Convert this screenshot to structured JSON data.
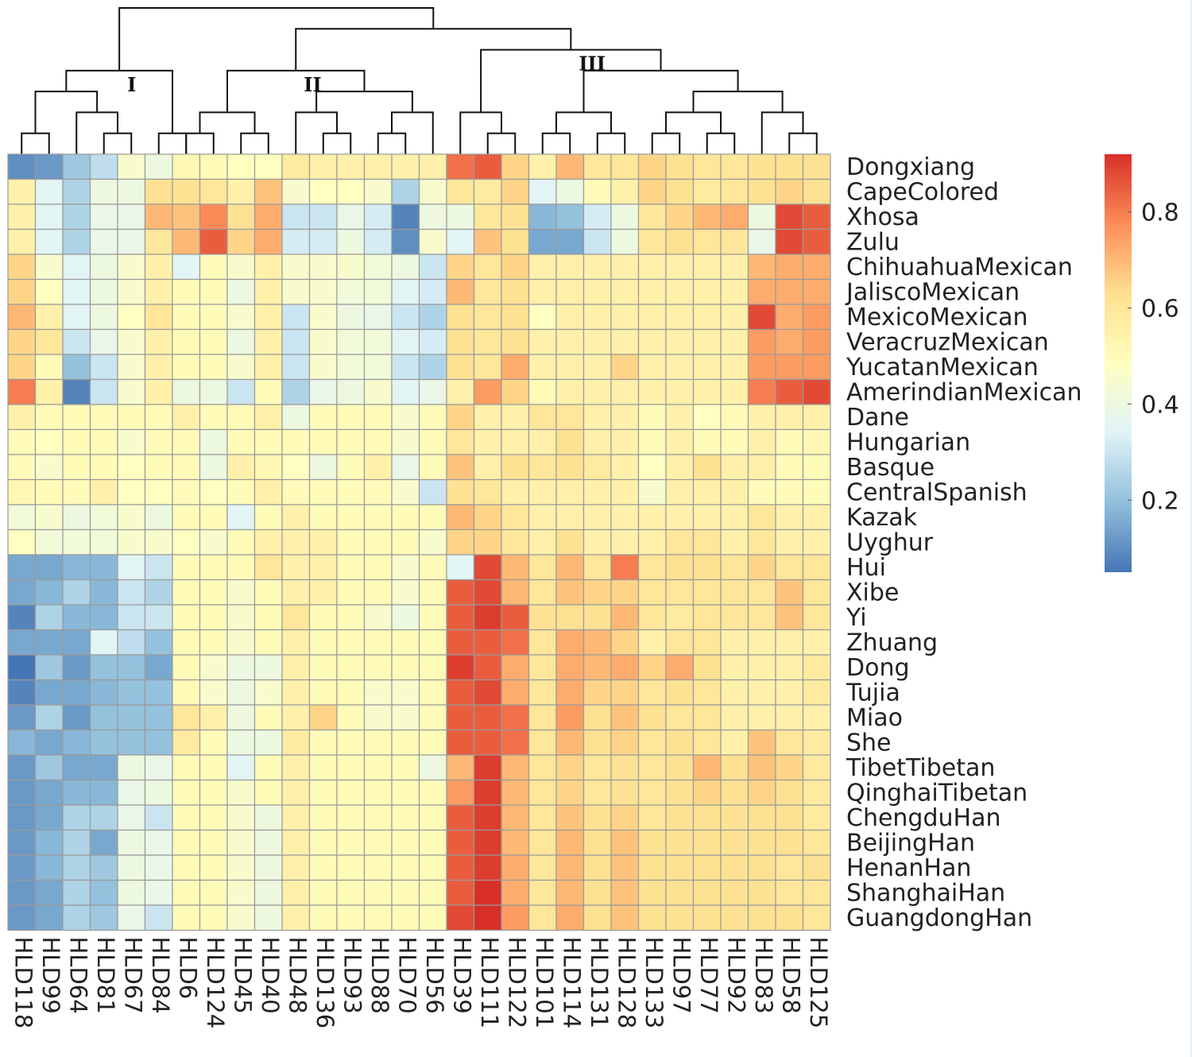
{
  "chart_data": {
    "type": "heatmap",
    "title": "",
    "columns": [
      "HLD118",
      "HLD99",
      "HLD64",
      "HLD81",
      "HLD67",
      "HLD84",
      "HLD6",
      "HLD124",
      "HLD45",
      "HLD40",
      "HLD48",
      "HLD136",
      "HLD93",
      "HLD88",
      "HLD70",
      "HLD56",
      "HLD39",
      "HLD111",
      "HLD122",
      "HLD101",
      "HLD114",
      "HLD131",
      "HLD128",
      "HLD133",
      "HLD97",
      "HLD77",
      "HLD92",
      "HLD83",
      "HLD58",
      "HLD125"
    ],
    "rows": [
      "Dongxiang",
      "CapeColored",
      "Xhosa",
      "Zulu",
      "ChihuahuaMexican",
      "JaliscoMexican",
      "MexicoMexican",
      "VeracruzMexican",
      "YucatanMexican",
      "AmerindianMexican",
      "Dane",
      "Hungarian",
      "Basque",
      "CentralSpanish",
      "Kazak",
      "Uyghur",
      "Hui",
      "Xibe",
      "Yi",
      "Zhuang",
      "Dong",
      "Tujia",
      "Miao",
      "She",
      "TibetTibetan",
      "QinghaiTibetan",
      "ChengduHan",
      "BeijingHan",
      "HenanHan",
      "ShanghaiHan",
      "GuangdongHan"
    ],
    "values": [
      [
        0.1,
        0.12,
        0.22,
        0.28,
        0.45,
        0.4,
        0.52,
        0.5,
        0.48,
        0.48,
        0.58,
        0.55,
        0.55,
        0.55,
        0.55,
        0.55,
        0.82,
        0.85,
        0.65,
        0.55,
        0.7,
        0.6,
        0.6,
        0.65,
        0.62,
        0.6,
        0.6,
        0.62,
        0.62,
        0.62
      ],
      [
        0.55,
        0.35,
        0.25,
        0.4,
        0.4,
        0.62,
        0.62,
        0.6,
        0.55,
        0.68,
        0.45,
        0.48,
        0.48,
        0.45,
        0.25,
        0.45,
        0.6,
        0.58,
        0.65,
        0.35,
        0.4,
        0.5,
        0.55,
        0.65,
        0.62,
        0.58,
        0.6,
        0.62,
        0.65,
        0.62
      ],
      [
        0.55,
        0.35,
        0.25,
        0.38,
        0.38,
        0.7,
        0.68,
        0.78,
        0.62,
        0.72,
        0.3,
        0.3,
        0.38,
        0.32,
        0.08,
        0.4,
        0.4,
        0.6,
        0.62,
        0.18,
        0.2,
        0.32,
        0.4,
        0.6,
        0.65,
        0.7,
        0.72,
        0.4,
        0.88,
        0.85
      ],
      [
        0.55,
        0.35,
        0.25,
        0.38,
        0.38,
        0.6,
        0.7,
        0.85,
        0.65,
        0.72,
        0.32,
        0.32,
        0.4,
        0.32,
        0.1,
        0.45,
        0.35,
        0.68,
        0.62,
        0.15,
        0.15,
        0.3,
        0.4,
        0.6,
        0.62,
        0.6,
        0.6,
        0.38,
        0.88,
        0.85
      ],
      [
        0.65,
        0.45,
        0.35,
        0.4,
        0.45,
        0.55,
        0.35,
        0.5,
        0.45,
        0.55,
        0.45,
        0.45,
        0.45,
        0.42,
        0.4,
        0.3,
        0.65,
        0.6,
        0.65,
        0.55,
        0.55,
        0.55,
        0.55,
        0.55,
        0.55,
        0.55,
        0.55,
        0.7,
        0.72,
        0.72
      ],
      [
        0.65,
        0.48,
        0.35,
        0.4,
        0.45,
        0.55,
        0.5,
        0.5,
        0.4,
        0.55,
        0.45,
        0.45,
        0.42,
        0.42,
        0.35,
        0.32,
        0.7,
        0.6,
        0.62,
        0.55,
        0.55,
        0.55,
        0.55,
        0.55,
        0.55,
        0.55,
        0.55,
        0.72,
        0.72,
        0.72
      ],
      [
        0.7,
        0.55,
        0.35,
        0.4,
        0.48,
        0.6,
        0.5,
        0.5,
        0.45,
        0.55,
        0.3,
        0.45,
        0.4,
        0.38,
        0.3,
        0.25,
        0.62,
        0.6,
        0.62,
        0.48,
        0.55,
        0.55,
        0.55,
        0.55,
        0.55,
        0.55,
        0.55,
        0.88,
        0.72,
        0.75
      ],
      [
        0.65,
        0.6,
        0.3,
        0.38,
        0.45,
        0.55,
        0.5,
        0.5,
        0.4,
        0.55,
        0.3,
        0.45,
        0.42,
        0.42,
        0.35,
        0.32,
        0.62,
        0.6,
        0.62,
        0.55,
        0.55,
        0.55,
        0.55,
        0.55,
        0.55,
        0.55,
        0.55,
        0.75,
        0.72,
        0.75
      ],
      [
        0.65,
        0.5,
        0.2,
        0.3,
        0.45,
        0.55,
        0.5,
        0.5,
        0.45,
        0.55,
        0.3,
        0.45,
        0.42,
        0.42,
        0.3,
        0.25,
        0.62,
        0.6,
        0.72,
        0.55,
        0.55,
        0.55,
        0.65,
        0.55,
        0.55,
        0.55,
        0.55,
        0.75,
        0.75,
        0.75
      ],
      [
        0.8,
        0.55,
        0.08,
        0.3,
        0.45,
        0.55,
        0.4,
        0.4,
        0.3,
        0.5,
        0.25,
        0.38,
        0.4,
        0.45,
        0.35,
        0.38,
        0.55,
        0.75,
        0.65,
        0.5,
        0.55,
        0.55,
        0.55,
        0.55,
        0.55,
        0.55,
        0.55,
        0.8,
        0.85,
        0.88
      ],
      [
        0.55,
        0.5,
        0.5,
        0.5,
        0.5,
        0.5,
        0.55,
        0.5,
        0.5,
        0.55,
        0.4,
        0.5,
        0.5,
        0.5,
        0.45,
        0.5,
        0.65,
        0.55,
        0.55,
        0.6,
        0.6,
        0.55,
        0.55,
        0.5,
        0.55,
        0.48,
        0.5,
        0.55,
        0.55,
        0.55
      ],
      [
        0.5,
        0.48,
        0.5,
        0.5,
        0.45,
        0.5,
        0.5,
        0.4,
        0.5,
        0.5,
        0.5,
        0.5,
        0.5,
        0.5,
        0.45,
        0.5,
        0.6,
        0.55,
        0.55,
        0.55,
        0.62,
        0.55,
        0.55,
        0.5,
        0.55,
        0.5,
        0.5,
        0.55,
        0.5,
        0.52
      ],
      [
        0.5,
        0.45,
        0.5,
        0.5,
        0.48,
        0.5,
        0.5,
        0.4,
        0.55,
        0.52,
        0.48,
        0.4,
        0.5,
        0.55,
        0.38,
        0.5,
        0.68,
        0.55,
        0.62,
        0.6,
        0.62,
        0.58,
        0.55,
        0.48,
        0.55,
        0.62,
        0.55,
        0.55,
        0.5,
        0.5
      ],
      [
        0.52,
        0.5,
        0.5,
        0.55,
        0.48,
        0.48,
        0.5,
        0.48,
        0.5,
        0.55,
        0.5,
        0.5,
        0.5,
        0.5,
        0.45,
        0.3,
        0.62,
        0.6,
        0.55,
        0.55,
        0.55,
        0.55,
        0.55,
        0.45,
        0.55,
        0.55,
        0.55,
        0.5,
        0.5,
        0.5
      ],
      [
        0.42,
        0.45,
        0.4,
        0.42,
        0.45,
        0.4,
        0.5,
        0.5,
        0.35,
        0.5,
        0.55,
        0.5,
        0.5,
        0.5,
        0.5,
        0.5,
        0.7,
        0.65,
        0.6,
        0.55,
        0.55,
        0.55,
        0.55,
        0.55,
        0.55,
        0.55,
        0.55,
        0.6,
        0.55,
        0.55
      ],
      [
        0.48,
        0.42,
        0.42,
        0.42,
        0.45,
        0.45,
        0.48,
        0.45,
        0.5,
        0.55,
        0.55,
        0.55,
        0.5,
        0.5,
        0.5,
        0.45,
        0.65,
        0.65,
        0.6,
        0.55,
        0.62,
        0.55,
        0.55,
        0.55,
        0.6,
        0.6,
        0.55,
        0.6,
        0.55,
        0.55
      ],
      [
        0.15,
        0.15,
        0.18,
        0.18,
        0.35,
        0.3,
        0.5,
        0.5,
        0.5,
        0.6,
        0.55,
        0.55,
        0.5,
        0.5,
        0.45,
        0.5,
        0.35,
        0.88,
        0.7,
        0.6,
        0.7,
        0.6,
        0.8,
        0.6,
        0.62,
        0.62,
        0.6,
        0.65,
        0.6,
        0.6
      ],
      [
        0.15,
        0.18,
        0.25,
        0.18,
        0.3,
        0.25,
        0.5,
        0.5,
        0.45,
        0.5,
        0.55,
        0.55,
        0.5,
        0.5,
        0.45,
        0.5,
        0.85,
        0.88,
        0.7,
        0.6,
        0.68,
        0.65,
        0.65,
        0.6,
        0.6,
        0.6,
        0.6,
        0.6,
        0.68,
        0.6
      ],
      [
        0.08,
        0.25,
        0.18,
        0.18,
        0.3,
        0.3,
        0.5,
        0.5,
        0.45,
        0.5,
        0.6,
        0.5,
        0.5,
        0.45,
        0.4,
        0.5,
        0.85,
        0.9,
        0.85,
        0.62,
        0.62,
        0.62,
        0.7,
        0.6,
        0.58,
        0.6,
        0.6,
        0.6,
        0.68,
        0.6
      ],
      [
        0.15,
        0.15,
        0.15,
        0.35,
        0.28,
        0.2,
        0.5,
        0.5,
        0.45,
        0.5,
        0.55,
        0.5,
        0.5,
        0.5,
        0.5,
        0.5,
        0.85,
        0.85,
        0.82,
        0.6,
        0.72,
        0.7,
        0.65,
        0.55,
        0.6,
        0.6,
        0.55,
        0.55,
        0.55,
        0.55
      ],
      [
        0.05,
        0.22,
        0.12,
        0.2,
        0.2,
        0.15,
        0.5,
        0.45,
        0.4,
        0.4,
        0.55,
        0.5,
        0.5,
        0.5,
        0.5,
        0.5,
        0.9,
        0.85,
        0.72,
        0.6,
        0.72,
        0.7,
        0.72,
        0.65,
        0.72,
        0.62,
        0.55,
        0.55,
        0.55,
        0.58
      ],
      [
        0.08,
        0.15,
        0.15,
        0.18,
        0.2,
        0.2,
        0.5,
        0.45,
        0.4,
        0.45,
        0.55,
        0.5,
        0.5,
        0.45,
        0.45,
        0.5,
        0.85,
        0.88,
        0.72,
        0.6,
        0.72,
        0.65,
        0.65,
        0.6,
        0.62,
        0.6,
        0.55,
        0.55,
        0.55,
        0.58
      ],
      [
        0.12,
        0.25,
        0.12,
        0.2,
        0.2,
        0.2,
        0.6,
        0.55,
        0.4,
        0.5,
        0.55,
        0.65,
        0.5,
        0.45,
        0.45,
        0.5,
        0.85,
        0.85,
        0.82,
        0.6,
        0.75,
        0.62,
        0.68,
        0.62,
        0.6,
        0.6,
        0.55,
        0.55,
        0.55,
        0.55
      ],
      [
        0.18,
        0.15,
        0.18,
        0.2,
        0.2,
        0.2,
        0.58,
        0.5,
        0.4,
        0.4,
        0.58,
        0.5,
        0.5,
        0.5,
        0.5,
        0.5,
        0.85,
        0.85,
        0.82,
        0.6,
        0.7,
        0.62,
        0.65,
        0.6,
        0.62,
        0.6,
        0.55,
        0.68,
        0.6,
        0.58
      ],
      [
        0.12,
        0.22,
        0.15,
        0.15,
        0.4,
        0.38,
        0.5,
        0.5,
        0.35,
        0.5,
        0.55,
        0.5,
        0.5,
        0.5,
        0.5,
        0.4,
        0.7,
        0.9,
        0.7,
        0.6,
        0.65,
        0.6,
        0.62,
        0.6,
        0.62,
        0.7,
        0.62,
        0.68,
        0.65,
        0.58
      ],
      [
        0.12,
        0.15,
        0.18,
        0.18,
        0.38,
        0.4,
        0.5,
        0.5,
        0.45,
        0.5,
        0.55,
        0.5,
        0.5,
        0.5,
        0.5,
        0.5,
        0.75,
        0.9,
        0.7,
        0.6,
        0.65,
        0.6,
        0.62,
        0.6,
        0.62,
        0.65,
        0.62,
        0.65,
        0.62,
        0.58
      ],
      [
        0.12,
        0.15,
        0.25,
        0.25,
        0.38,
        0.3,
        0.5,
        0.5,
        0.45,
        0.4,
        0.55,
        0.5,
        0.5,
        0.5,
        0.5,
        0.5,
        0.85,
        0.9,
        0.7,
        0.6,
        0.68,
        0.62,
        0.65,
        0.6,
        0.62,
        0.62,
        0.62,
        0.62,
        0.62,
        0.58
      ],
      [
        0.12,
        0.18,
        0.25,
        0.15,
        0.4,
        0.38,
        0.5,
        0.5,
        0.45,
        0.4,
        0.55,
        0.5,
        0.5,
        0.5,
        0.5,
        0.5,
        0.85,
        0.9,
        0.7,
        0.6,
        0.7,
        0.62,
        0.68,
        0.62,
        0.62,
        0.62,
        0.62,
        0.62,
        0.62,
        0.6
      ],
      [
        0.12,
        0.18,
        0.25,
        0.22,
        0.4,
        0.38,
        0.5,
        0.5,
        0.45,
        0.4,
        0.55,
        0.5,
        0.5,
        0.5,
        0.5,
        0.5,
        0.85,
        0.9,
        0.72,
        0.6,
        0.7,
        0.62,
        0.68,
        0.62,
        0.62,
        0.62,
        0.62,
        0.62,
        0.6,
        0.62
      ],
      [
        0.12,
        0.15,
        0.25,
        0.2,
        0.4,
        0.38,
        0.5,
        0.5,
        0.45,
        0.4,
        0.55,
        0.5,
        0.5,
        0.5,
        0.5,
        0.5,
        0.85,
        0.92,
        0.72,
        0.6,
        0.7,
        0.62,
        0.68,
        0.62,
        0.62,
        0.62,
        0.62,
        0.62,
        0.6,
        0.6
      ],
      [
        0.12,
        0.15,
        0.25,
        0.22,
        0.38,
        0.3,
        0.5,
        0.5,
        0.45,
        0.4,
        0.55,
        0.5,
        0.5,
        0.5,
        0.5,
        0.5,
        0.88,
        0.92,
        0.75,
        0.6,
        0.72,
        0.62,
        0.68,
        0.62,
        0.62,
        0.62,
        0.62,
        0.62,
        0.62,
        0.6
      ]
    ],
    "color_scale": {
      "min": 0.05,
      "max": 0.92,
      "colors": [
        "#4575b4",
        "#91bfdb",
        "#e0f3f8",
        "#ffffbf",
        "#fee090",
        "#fc8d59",
        "#d73027"
      ]
    },
    "colorbar_ticks": [
      0.2,
      0.4,
      0.6,
      0.8
    ],
    "colorbar_tick_labels": [
      "0.2",
      "0.4",
      "0.6",
      "0.8"
    ],
    "cluster_labels": [
      "I",
      "II",
      "III"
    ],
    "column_tree": [
      [
        [
          [
            0,
            1
          ],
          [
            2,
            [
              3,
              4
            ]
          ]
        ],
        [
          5,
          6
        ]
      ],
      [
        [
          [
            [
              6,
              7
            ],
            [
              8,
              9
            ]
          ],
          [
            [
              10,
              [
                11,
                12
              ]
            ],
            [
              [
                13,
                14
              ],
              15
            ]
          ]
        ],
        [
          [
            16,
            [
              17,
              18
            ]
          ],
          [
            [
              [
                19,
                20
              ],
              [
                21,
                22
              ]
            ],
            [
              [
                [
                  23,
                  24
                ],
                [
                  25,
                  26
                ]
              ],
              [
                27,
                [
                  28,
                  29
                ]
              ]
            ]
          ]
        ]
      ]
    ],
    "grid": true,
    "legend_position": "right"
  }
}
